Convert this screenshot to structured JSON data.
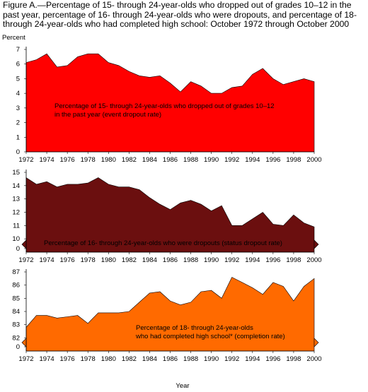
{
  "figure_title": "Figure A.—Percentage of 15- through 24-year-olds who dropped out of grades 10–12 in the past year, percentage of 16- through 24-year-olds who were dropouts, and percentage of 18- through 24-year-olds who had completed high school: October 1972 through October 2000",
  "y_unit_label": "Percent",
  "x_axis_label": "Year",
  "colors": {
    "event": "#ff0000",
    "status": "#6b0f0f",
    "completion": "#ff6a00",
    "axis": "#000000"
  },
  "chart_data": [
    {
      "type": "area",
      "id": "event",
      "annotation": "Percentage of 15- through 24-year-olds who dropped out of grades 10–12 in the past year (event dropout rate)",
      "annotation_lines": [
        "Percentage of 15- through 24-year-olds who dropped out of grades 10–12",
        "in the past year (event dropout rate)"
      ],
      "x": [
        1972,
        1973,
        1974,
        1975,
        1976,
        1977,
        1978,
        1979,
        1980,
        1981,
        1982,
        1983,
        1984,
        1985,
        1986,
        1987,
        1988,
        1989,
        1990,
        1991,
        1992,
        1993,
        1994,
        1995,
        1996,
        1997,
        1998,
        1999,
        2000
      ],
      "values": [
        6.1,
        6.3,
        6.7,
        5.8,
        5.9,
        6.5,
        6.7,
        6.7,
        6.1,
        5.9,
        5.5,
        5.2,
        5.1,
        5.2,
        4.7,
        4.1,
        4.8,
        4.5,
        4.0,
        4.0,
        4.4,
        4.5,
        5.3,
        5.7,
        5.0,
        4.6,
        4.8,
        5.0,
        4.8
      ],
      "ylim": [
        0,
        7
      ],
      "y_ticks": [
        0,
        1,
        2,
        3,
        4,
        5,
        6,
        7
      ],
      "axis_break": false
    },
    {
      "type": "area",
      "id": "status",
      "annotation": "Percentage of 16- through 24-year-olds who were dropouts (status dropout rate)",
      "annotation_lines": [
        "Percentage of 16- through 24-year-olds  who were dropouts (status dropout rate)"
      ],
      "x": [
        1972,
        1973,
        1974,
        1975,
        1976,
        1977,
        1978,
        1979,
        1980,
        1981,
        1982,
        1983,
        1984,
        1985,
        1986,
        1987,
        1988,
        1989,
        1990,
        1991,
        1992,
        1993,
        1994,
        1995,
        1996,
        1997,
        1998,
        1999,
        2000
      ],
      "values": [
        14.6,
        14.1,
        14.3,
        13.9,
        14.1,
        14.1,
        14.2,
        14.6,
        14.1,
        13.9,
        13.9,
        13.7,
        13.1,
        12.6,
        12.2,
        12.7,
        12.9,
        12.6,
        12.1,
        12.5,
        11.0,
        11.0,
        11.5,
        12.0,
        11.1,
        11.0,
        11.8,
        11.2,
        10.9
      ],
      "ylim": [
        9,
        15
      ],
      "y_ticks": [
        0,
        10,
        11,
        12,
        13,
        14,
        15
      ],
      "axis_break": true
    },
    {
      "type": "area",
      "id": "completion",
      "annotation": "Percentage of 18- through 24-year-olds who had completed high school* (completion rate)",
      "annotation_lines": [
        "Percentage of 18- through 24-year-olds",
        "who had completed high school* (completion rate)"
      ],
      "x": [
        1972,
        1973,
        1974,
        1975,
        1976,
        1977,
        1978,
        1979,
        1980,
        1981,
        1982,
        1983,
        1984,
        1985,
        1986,
        1987,
        1988,
        1989,
        1990,
        1991,
        1992,
        1993,
        1994,
        1995,
        1996,
        1997,
        1998,
        1999,
        2000
      ],
      "values": [
        82.8,
        83.7,
        83.7,
        83.5,
        83.6,
        83.7,
        83.1,
        83.9,
        83.9,
        83.9,
        84.0,
        84.7,
        85.4,
        85.5,
        84.8,
        84.5,
        84.7,
        85.5,
        85.6,
        85.0,
        86.6,
        86.2,
        85.8,
        85.3,
        86.2,
        85.9,
        84.8,
        85.9,
        86.5
      ],
      "ylim": [
        81,
        87
      ],
      "y_ticks": [
        0,
        82,
        83,
        84,
        85,
        86,
        87
      ],
      "axis_break": true
    }
  ],
  "x_ticks": [
    1972,
    1974,
    1976,
    1978,
    1980,
    1982,
    1984,
    1986,
    1988,
    1990,
    1992,
    1994,
    1996,
    1998,
    2000
  ]
}
